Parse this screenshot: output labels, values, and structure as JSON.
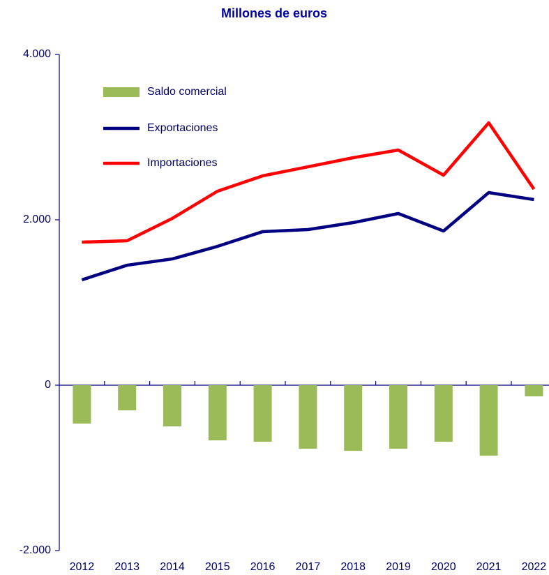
{
  "chart_data": {
    "type": "bar_line",
    "title": "Millones de euros",
    "categories": [
      "2012",
      "2013",
      "2014",
      "2015",
      "2016",
      "2017",
      "2018",
      "2019",
      "2020",
      "2021",
      "2022"
    ],
    "series": [
      {
        "name": "Saldo comercial",
        "type": "bar",
        "color": "#9bbb59",
        "values": [
          -464,
          -304,
          -498,
          -667,
          -684,
          -768,
          -793,
          -768,
          -684,
          -852,
          -135
        ]
      },
      {
        "name": "Exportaciones",
        "type": "line",
        "color": "#000080",
        "values": [
          1274,
          1451,
          1527,
          1679,
          1857,
          1882,
          1966,
          2076,
          1865,
          2329,
          2245
        ]
      },
      {
        "name": "Importaciones",
        "type": "line",
        "color": "#ff0000",
        "values": [
          1730,
          1747,
          2017,
          2346,
          2532,
          2641,
          2751,
          2844,
          2540,
          3173,
          2371
        ]
      }
    ],
    "ylim": [
      -2000,
      4000
    ],
    "yticks": [
      {
        "value": -2000,
        "label": "-2.000"
      },
      0,
      {
        "value": 2000,
        "label": "2.000"
      },
      {
        "value": 4000,
        "label": "4.000"
      }
    ],
    "grid": false,
    "legend": "upper left"
  }
}
